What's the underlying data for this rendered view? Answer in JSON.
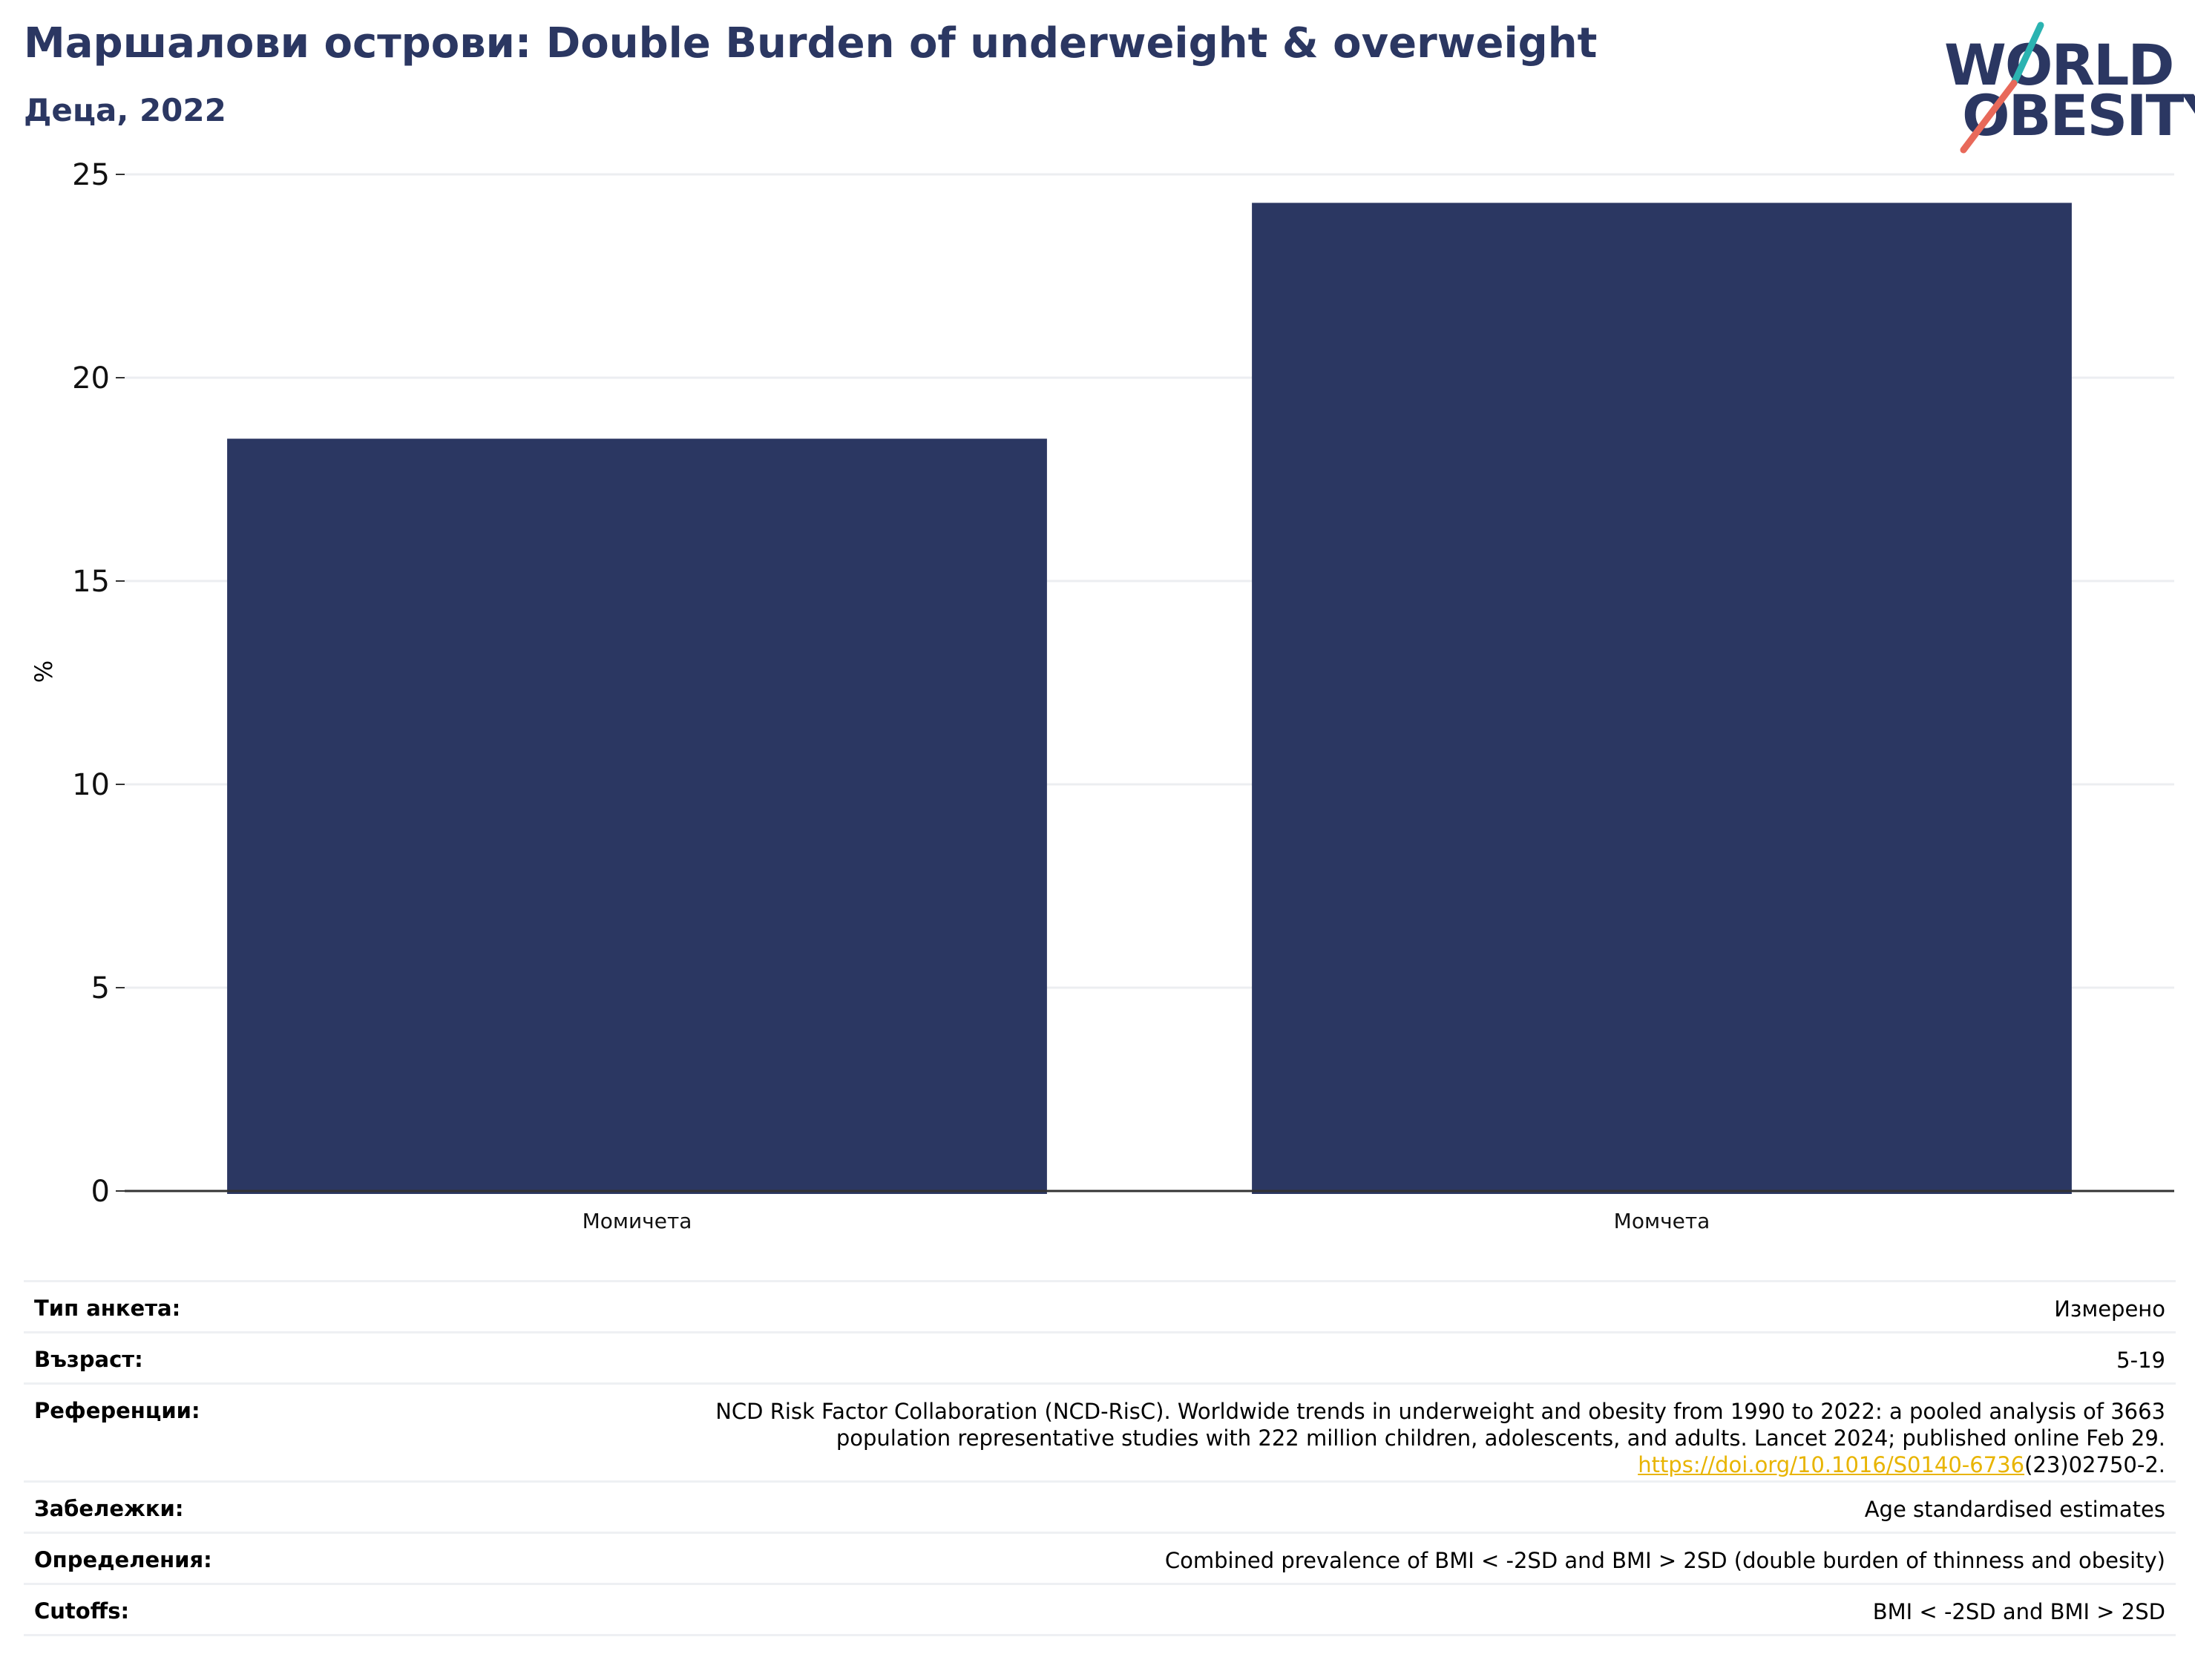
{
  "header": {
    "title": "Маршалови острови: Double Burden of underweight & overweight",
    "subtitle": "Деца, 2022"
  },
  "logo": {
    "line1": "WORLD",
    "line2": "OBESITY",
    "colors": {
      "text": "#2b3762",
      "slash_teal": "#2bb3b1",
      "slash_coral": "#e8695a"
    }
  },
  "colors": {
    "bar": "#2b3762",
    "grid": "#eceef1",
    "axis": "#333333"
  },
  "chart_data": {
    "type": "bar",
    "categories": [
      "Момичета",
      "Момчета"
    ],
    "values": [
      18.5,
      24.3
    ],
    "title": "",
    "xlabel": "",
    "ylabel": "%",
    "ylim": [
      0,
      25
    ],
    "yticks": [
      0,
      5,
      10,
      15,
      20,
      25
    ],
    "grid": true,
    "legend": "none"
  },
  "info": {
    "survey_type": {
      "label": "Тип анкета:",
      "value": "Измерено"
    },
    "age": {
      "label": "Възраст:",
      "value": "5-19"
    },
    "references": {
      "label": "Референции:",
      "line1": "NCD Risk Factor Collaboration (NCD-RisC). Worldwide trends in underweight and obesity from 1990 to 2022: a pooled analysis of 3663",
      "line2": "population representative studies with 222 million children, adolescents, and adults. Lancet 2024; published online Feb 29.",
      "link": "https://doi.org/10.1016/S0140-6736",
      "link_suffix": "(23)02750-2."
    },
    "notes": {
      "label": "Забележки:",
      "value": "Age standardised estimates"
    },
    "definitions": {
      "label": "Определения:",
      "value": "Combined prevalence of BMI < -2SD and BMI > 2SD (double burden of thinness and obesity)"
    },
    "cutoffs": {
      "label": "Cutoffs:",
      "value": "BMI < -2SD and BMI > 2SD"
    }
  }
}
